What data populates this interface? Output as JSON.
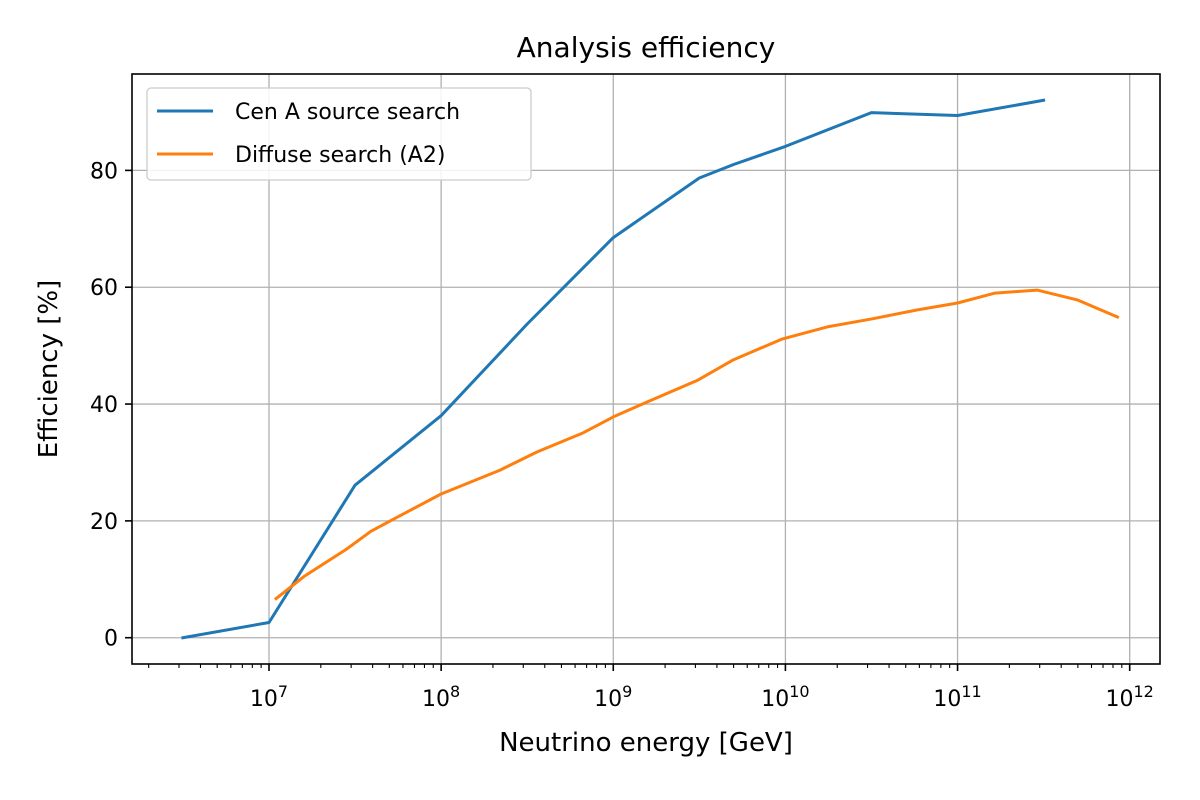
{
  "chart_data": {
    "type": "line",
    "title": "Analysis efficiency",
    "xlabel": "Neutrino energy [GeV]",
    "ylabel": "Efficiency [%]",
    "x_scale": "log",
    "xlim": [
      1600000.0,
      1500000000000.0
    ],
    "ylim": [
      -4.5,
      96.5
    ],
    "x_ticks": [
      {
        "value": 10000000.0,
        "base": "10",
        "exp": "7"
      },
      {
        "value": 100000000.0,
        "base": "10",
        "exp": "8"
      },
      {
        "value": 1000000000.0,
        "base": "10",
        "exp": "9"
      },
      {
        "value": 10000000000.0,
        "base": "10",
        "exp": "10"
      },
      {
        "value": 100000000000.0,
        "base": "10",
        "exp": "11"
      },
      {
        "value": 1000000000000.0,
        "base": "10",
        "exp": "12"
      }
    ],
    "y_ticks": [
      0,
      20,
      40,
      60,
      80
    ],
    "y_tick_labels": [
      "0",
      "20",
      "40",
      "60",
      "80"
    ],
    "grid": true,
    "legend_position": "upper-left",
    "series": [
      {
        "name": "Cen A source search",
        "color": "#1f77b4",
        "x": [
          3160000.0,
          10000000.0,
          31600000.0,
          100000000.0,
          316000000.0,
          1000000000.0,
          3160000000.0,
          5000000000.0,
          10000000000.0,
          31600000000.0,
          100000000000.0,
          316000000000.0
        ],
        "y": [
          0,
          2.6,
          26.1,
          38.0,
          53.7,
          68.5,
          78.7,
          81.0,
          84.1,
          89.9,
          89.4,
          92.0
        ]
      },
      {
        "name": "Diffuse search (A2)",
        "color": "#ff7f0e",
        "x": [
          11000000.0,
          16000000.0,
          28000000.0,
          39000000.0,
          57000000.0,
          100000000.0,
          220000000.0,
          360000000.0,
          660000000.0,
          1000000000.0,
          1500000000.0,
          3100000000.0,
          5000000000.0,
          9500000000.0,
          17500000000.0,
          32000000000.0,
          58000000000.0,
          100000000000.0,
          165000000000.0,
          290000000000.0,
          500000000000.0,
          850000000000.0
        ],
        "y": [
          6.7,
          10.5,
          15.1,
          18.2,
          20.8,
          24.6,
          28.7,
          31.8,
          35.0,
          37.8,
          40.1,
          44.1,
          47.6,
          51.1,
          53.2,
          54.6,
          56.1,
          57.3,
          59.0,
          59.5,
          57.8,
          54.9
        ]
      }
    ]
  }
}
